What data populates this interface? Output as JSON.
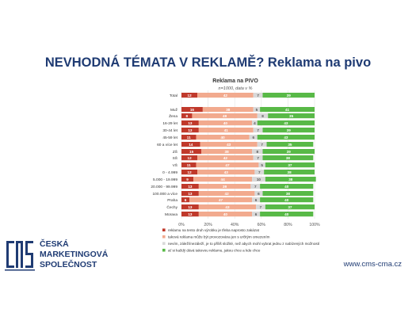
{
  "slide": {
    "title": "NEVHODNÁ TÉMATA V REKLAMĚ? Reklama na pivo",
    "company_name": "ČESKÁ\nMARKETINGOVÁ\nSPOLEČNOST",
    "website": "www.cms-cma.cz"
  },
  "colors": {
    "title": "#1f3b73",
    "series": [
      "#c0392b",
      "#f2aa8e",
      "#d9d9d9",
      "#58b947"
    ]
  },
  "chart_data": {
    "type": "bar",
    "orientation": "horizontal",
    "stacked": "percent",
    "title": "Reklama na PIVO",
    "subtitle": "n=1000, data v %",
    "xlim": [
      0,
      100
    ],
    "xticks": [
      "0%",
      "20%",
      "40%",
      "60%",
      "80%",
      "100%"
    ],
    "grid": true,
    "legend_position": "bottom",
    "categories": [
      "Total",
      "Muž",
      "Žena",
      "16-29 let",
      "30-44 let",
      "45-59 let",
      "60 a více let",
      "ZŠ",
      "SŠ",
      "VŠ",
      "0 - 4.999",
      "5.000 - 19.999",
      "20.000 - 99.999",
      "100.000 a více",
      "Praha",
      "Čechy",
      "Morava"
    ],
    "series": [
      {
        "name": "reklamu na tento druh výrobku je třeba naprosto zakázat",
        "values": [
          12,
          16,
          8,
          13,
          13,
          11,
          14,
          15,
          12,
          11,
          12,
          9,
          13,
          13,
          6,
          13,
          13
        ]
      },
      {
        "name": "taková reklama může být provozována jen s určitým omezením",
        "values": [
          42,
          38,
          49,
          40,
          41,
          40,
          43,
          38,
          42,
          47,
          43,
          44,
          39,
          42,
          47,
          43,
          40
        ]
      },
      {
        "name": "nevím, záleží/nezáleží, je to příliš složité, než abych mohl vybrat jednu z nabízených možností",
        "values": [
          7,
          5,
          8,
          4,
          7,
          6,
          7,
          8,
          7,
          5,
          7,
          10,
          7,
          6,
          6,
          7,
          6
        ]
      },
      {
        "name": "ať si každý dává takovou reklamu, jakou chce a kde chce",
        "values": [
          39,
          41,
          35,
          43,
          39,
          43,
          35,
          39,
          38,
          37,
          38,
          38,
          40,
          38,
          40,
          37,
          40
        ]
      }
    ]
  }
}
